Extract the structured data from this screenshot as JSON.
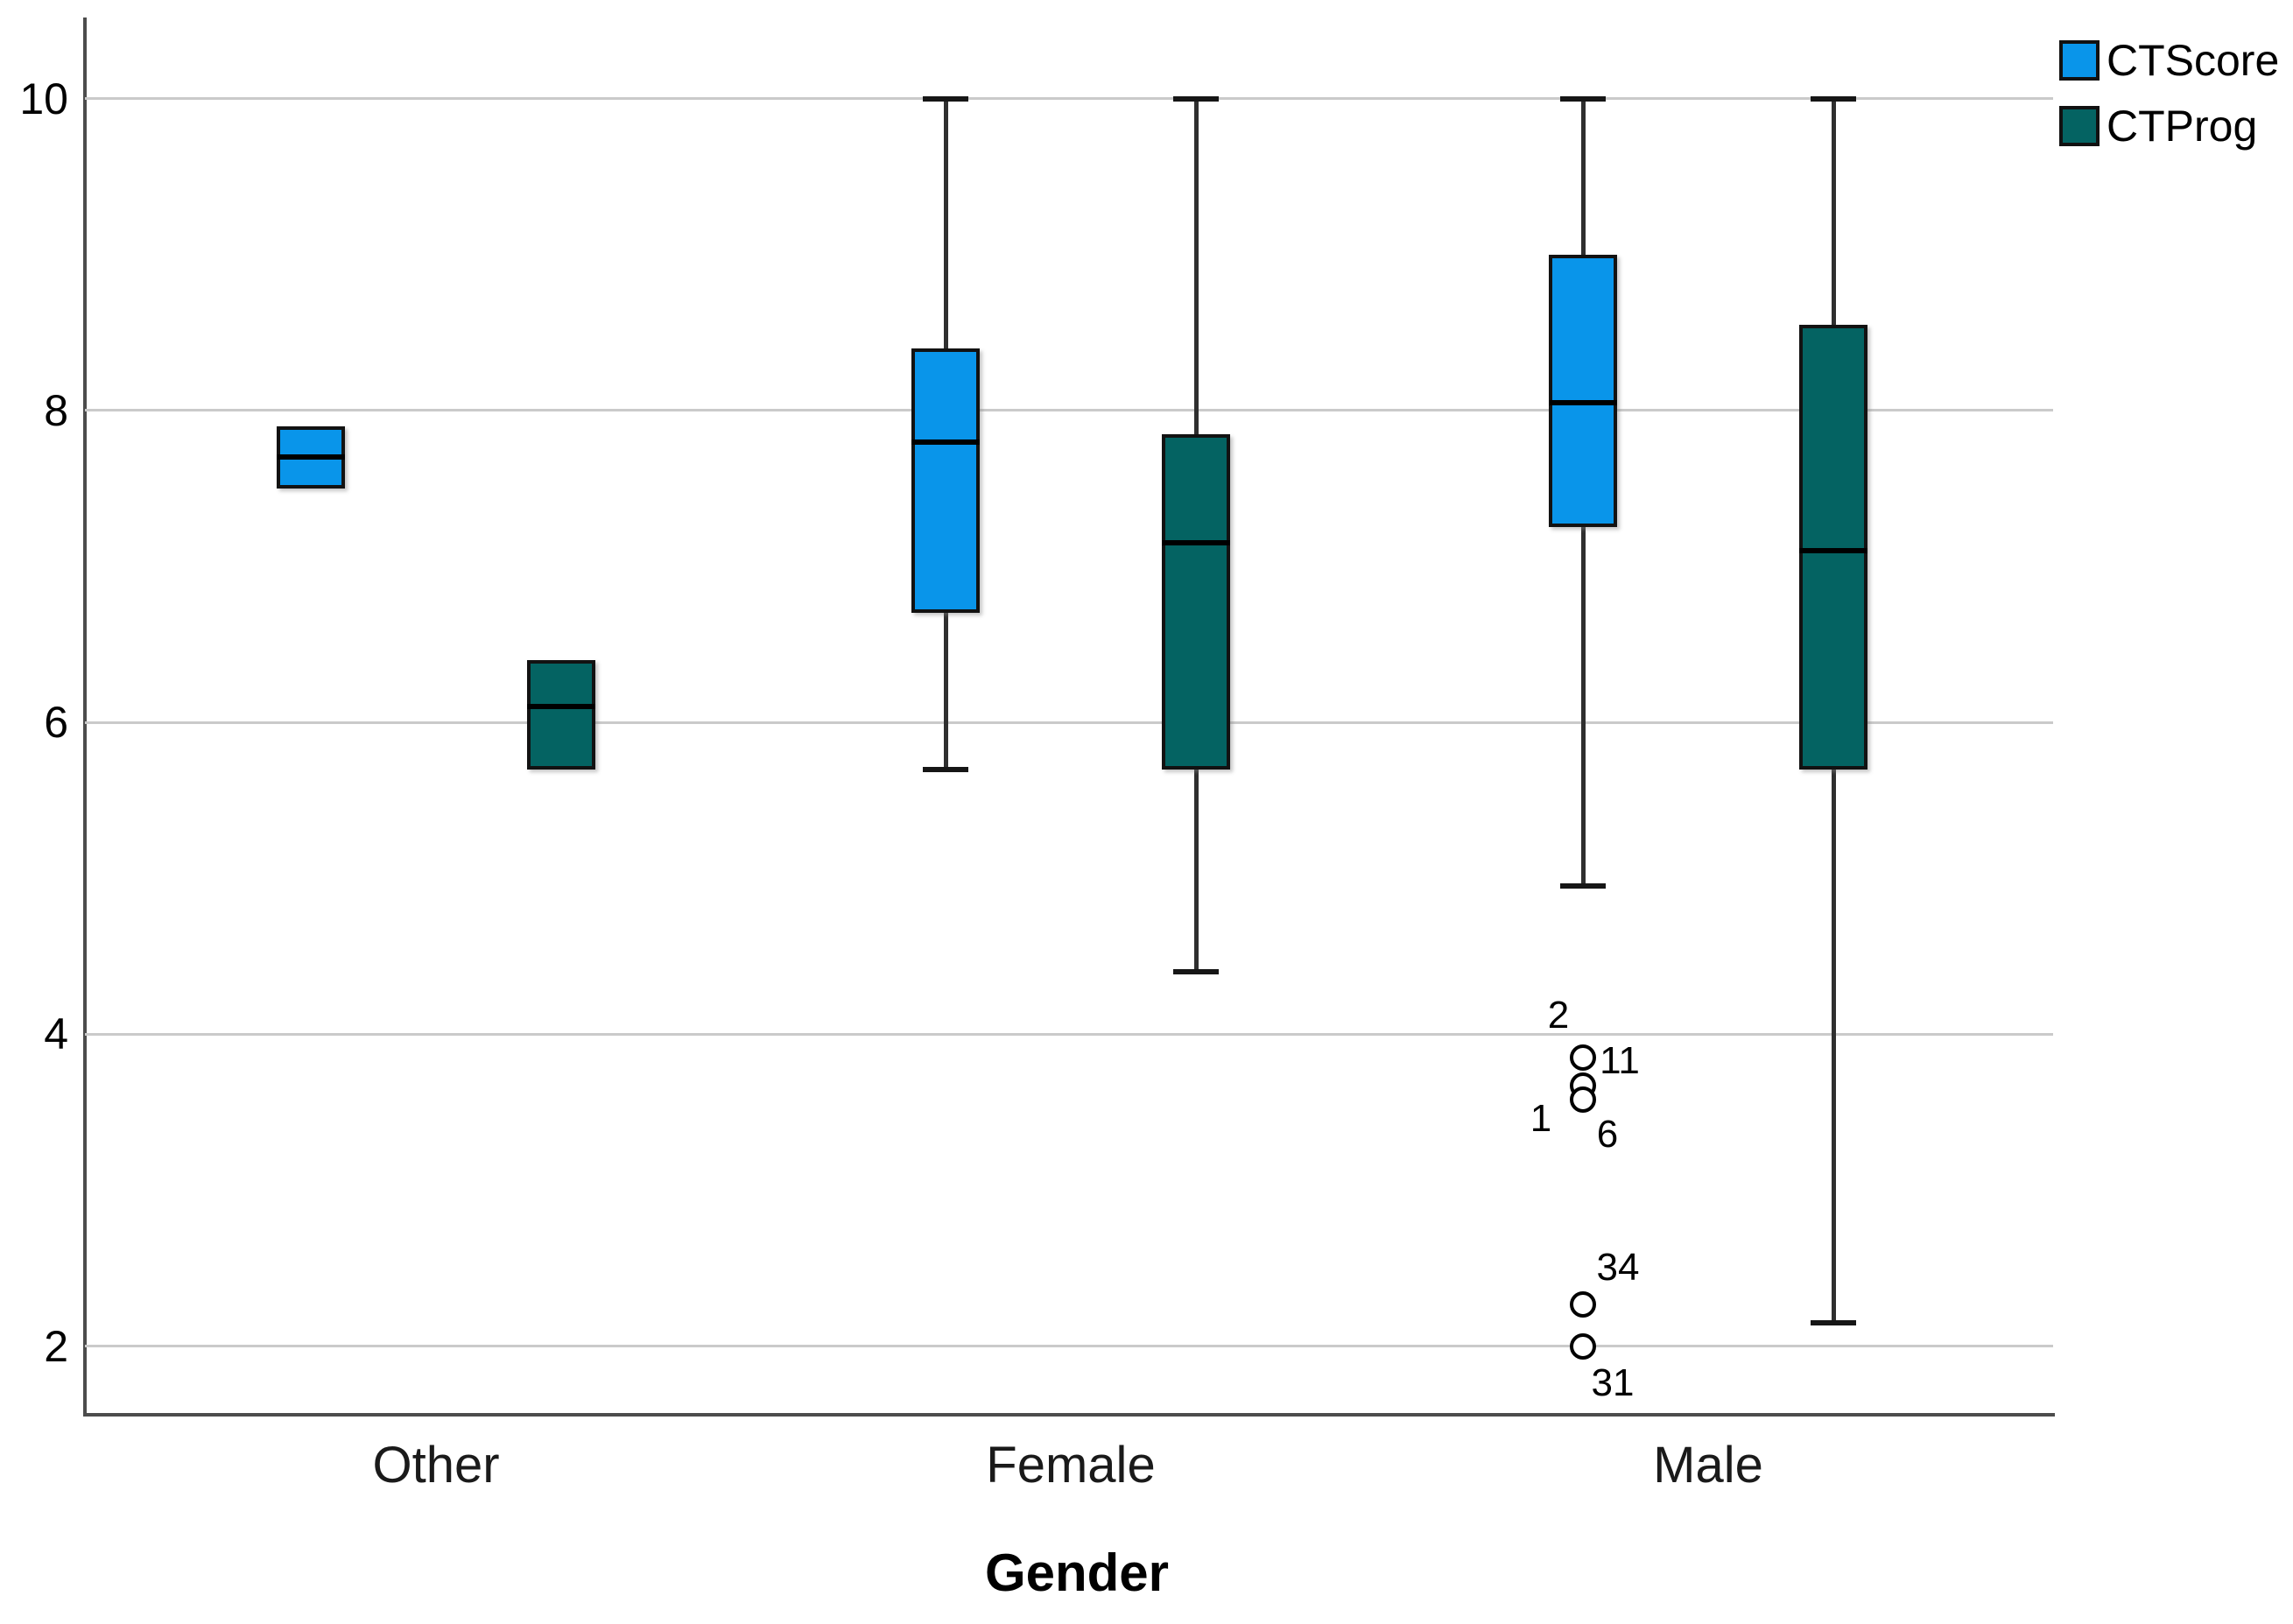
{
  "chart_data": {
    "type": "boxplot",
    "title": "",
    "xlabel": "Gender",
    "ylabel": "",
    "categories": [
      "Other",
      "Female",
      "Male"
    ],
    "y_ticks": [
      2,
      4,
      6,
      8,
      10
    ],
    "ylim": [
      1.56,
      10.52
    ],
    "grid": "horizontal",
    "legend_position": "top-right",
    "colors": {
      "ctscore": "#0995ea",
      "ctprog": "#046362",
      "axis": "#4c4c4c",
      "gridline": "#cacaca",
      "median": "#000000",
      "outlier_fill": "#ffffff"
    },
    "series": [
      {
        "name": "CTScore",
        "color": "#0995ea",
        "boxes": [
          {
            "category": "Other",
            "min": 7.5,
            "q1": 7.5,
            "median": 7.7,
            "q3": 7.9,
            "max": 7.9
          },
          {
            "category": "Female",
            "min": 5.7,
            "q1": 6.7,
            "median": 7.8,
            "q3": 8.4,
            "max": 10
          },
          {
            "category": "Male",
            "min": 4.95,
            "q1": 7.25,
            "median": 8.05,
            "q3": 9.0,
            "max": 10,
            "outlier_points": [
              3.85,
              3.67,
              3.58,
              2.27,
              2.0
            ],
            "outlier_labels": [
              {
                "text": "2",
                "value": 3.85,
                "dx": -28,
                "dy": -48
              },
              {
                "text": "11",
                "value": 3.85,
                "dx": 42,
                "dy": 4
              },
              {
                "text": "1",
                "value": 3.67,
                "dx": -48,
                "dy": 38
              },
              {
                "text": "6",
                "value": 3.58,
                "dx": 28,
                "dy": 40
              },
              {
                "text": "34",
                "value": 2.27,
                "dx": 40,
                "dy": -42
              },
              {
                "text": "31",
                "value": 2.0,
                "dx": 34,
                "dy": 42
              }
            ]
          }
        ]
      },
      {
        "name": "CTProg",
        "color": "#046362",
        "boxes": [
          {
            "category": "Other",
            "min": 5.7,
            "q1": 5.7,
            "median": 6.1,
            "q3": 6.4,
            "max": 6.4
          },
          {
            "category": "Female",
            "min": 4.4,
            "q1": 5.7,
            "median": 7.15,
            "q3": 7.85,
            "max": 10
          },
          {
            "category": "Male",
            "min": 2.15,
            "q1": 5.7,
            "median": 7.1,
            "q3": 8.55,
            "max": 10
          }
        ]
      }
    ]
  }
}
